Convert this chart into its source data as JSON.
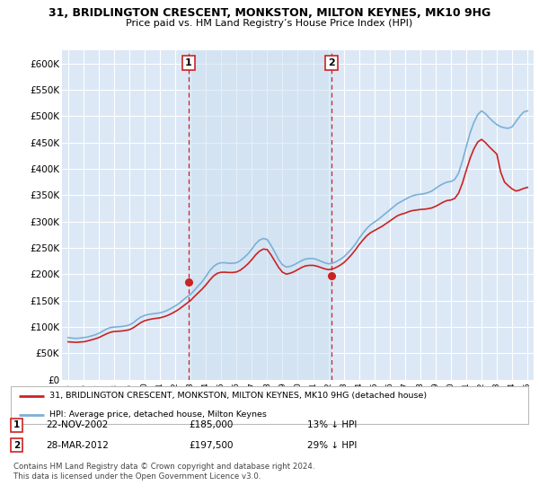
{
  "title": "31, BRIDLINGTON CRESCENT, MONKSTON, MILTON KEYNES, MK10 9HG",
  "subtitle": "Price paid vs. HM Land Registry’s House Price Index (HPI)",
  "bg_color": "#ffffff",
  "plot_bg_color": "#dce8f5",
  "hpi_color": "#7ab0d8",
  "price_color": "#cc2222",
  "sale1": {
    "date": "22-NOV-2002",
    "price": 185000,
    "label": "1",
    "pct": "13%",
    "direction": "↓"
  },
  "sale2": {
    "date": "28-MAR-2012",
    "price": 197500,
    "label": "2",
    "pct": "29%",
    "direction": "↓"
  },
  "legend_line1": "31, BRIDLINGTON CRESCENT, MONKSTON, MILTON KEYNES, MK10 9HG (detached house)",
  "legend_line2": "HPI: Average price, detached house, Milton Keynes",
  "footer1": "Contains HM Land Registry data © Crown copyright and database right 2024.",
  "footer2": "This data is licensed under the Open Government Licence v3.0.",
  "hpi_data": {
    "years": [
      1995.0,
      1995.25,
      1995.5,
      1995.75,
      1996.0,
      1996.25,
      1996.5,
      1996.75,
      1997.0,
      1997.25,
      1997.5,
      1997.75,
      1998.0,
      1998.25,
      1998.5,
      1998.75,
      1999.0,
      1999.25,
      1999.5,
      1999.75,
      2000.0,
      2000.25,
      2000.5,
      2000.75,
      2001.0,
      2001.25,
      2001.5,
      2001.75,
      2002.0,
      2002.25,
      2002.5,
      2002.75,
      2003.0,
      2003.25,
      2003.5,
      2003.75,
      2004.0,
      2004.25,
      2004.5,
      2004.75,
      2005.0,
      2005.25,
      2005.5,
      2005.75,
      2006.0,
      2006.25,
      2006.5,
      2006.75,
      2007.0,
      2007.25,
      2007.5,
      2007.75,
      2008.0,
      2008.25,
      2008.5,
      2008.75,
      2009.0,
      2009.25,
      2009.5,
      2009.75,
      2010.0,
      2010.25,
      2010.5,
      2010.75,
      2011.0,
      2011.25,
      2011.5,
      2011.75,
      2012.0,
      2012.25,
      2012.5,
      2012.75,
      2013.0,
      2013.25,
      2013.5,
      2013.75,
      2014.0,
      2014.25,
      2014.5,
      2014.75,
      2015.0,
      2015.25,
      2015.5,
      2015.75,
      2016.0,
      2016.25,
      2016.5,
      2016.75,
      2017.0,
      2017.25,
      2017.5,
      2017.75,
      2018.0,
      2018.25,
      2018.5,
      2018.75,
      2019.0,
      2019.25,
      2019.5,
      2019.75,
      2020.0,
      2020.25,
      2020.5,
      2020.75,
      2021.0,
      2021.25,
      2021.5,
      2021.75,
      2022.0,
      2022.25,
      2022.5,
      2022.75,
      2023.0,
      2023.25,
      2023.5,
      2023.75,
      2024.0,
      2024.25,
      2024.5,
      2024.75,
      2025.0
    ],
    "values": [
      80000,
      79000,
      78500,
      79000,
      80000,
      81000,
      83000,
      85000,
      88000,
      92000,
      96000,
      99000,
      100000,
      100500,
      101000,
      102000,
      104000,
      108000,
      114000,
      119000,
      122000,
      124000,
      125000,
      126000,
      127000,
      129000,
      132000,
      136000,
      140000,
      145000,
      151000,
      157000,
      162000,
      170000,
      178000,
      186000,
      196000,
      207000,
      215000,
      220000,
      222000,
      222000,
      221000,
      221000,
      222000,
      226000,
      232000,
      239000,
      248000,
      258000,
      265000,
      268000,
      266000,
      255000,
      242000,
      228000,
      218000,
      214000,
      215000,
      218000,
      222000,
      226000,
      229000,
      230000,
      230000,
      228000,
      225000,
      222000,
      220000,
      221000,
      224000,
      228000,
      233000,
      240000,
      248000,
      257000,
      268000,
      278000,
      287000,
      294000,
      299000,
      304000,
      310000,
      316000,
      322000,
      328000,
      334000,
      338000,
      342000,
      346000,
      349000,
      351000,
      352000,
      353000,
      355000,
      358000,
      363000,
      368000,
      372000,
      375000,
      376000,
      380000,
      392000,
      415000,
      442000,
      468000,
      488000,
      503000,
      510000,
      505000,
      497000,
      490000,
      484000,
      480000,
      478000,
      477000,
      480000,
      490000,
      500000,
      508000,
      510000
    ]
  },
  "price_data": {
    "years": [
      1995.0,
      1995.25,
      1995.5,
      1995.75,
      1996.0,
      1996.25,
      1996.5,
      1996.75,
      1997.0,
      1997.25,
      1997.5,
      1997.75,
      1998.0,
      1998.25,
      1998.5,
      1998.75,
      1999.0,
      1999.25,
      1999.5,
      1999.75,
      2000.0,
      2000.25,
      2000.5,
      2000.75,
      2001.0,
      2001.25,
      2001.5,
      2001.75,
      2002.0,
      2002.25,
      2002.5,
      2002.75,
      2003.0,
      2003.25,
      2003.5,
      2003.75,
      2004.0,
      2004.25,
      2004.5,
      2004.75,
      2005.0,
      2005.25,
      2005.5,
      2005.75,
      2006.0,
      2006.25,
      2006.5,
      2006.75,
      2007.0,
      2007.25,
      2007.5,
      2007.75,
      2008.0,
      2008.25,
      2008.5,
      2008.75,
      2009.0,
      2009.25,
      2009.5,
      2009.75,
      2010.0,
      2010.25,
      2010.5,
      2010.75,
      2011.0,
      2011.25,
      2011.5,
      2011.75,
      2012.0,
      2012.25,
      2012.5,
      2012.75,
      2013.0,
      2013.25,
      2013.5,
      2013.75,
      2014.0,
      2014.25,
      2014.5,
      2014.75,
      2015.0,
      2015.25,
      2015.5,
      2015.75,
      2016.0,
      2016.25,
      2016.5,
      2016.75,
      2017.0,
      2017.25,
      2017.5,
      2017.75,
      2018.0,
      2018.25,
      2018.5,
      2018.75,
      2019.0,
      2019.25,
      2019.5,
      2019.75,
      2020.0,
      2020.25,
      2020.5,
      2020.75,
      2021.0,
      2021.25,
      2021.5,
      2021.75,
      2022.0,
      2022.25,
      2022.5,
      2022.75,
      2023.0,
      2023.25,
      2023.5,
      2023.75,
      2024.0,
      2024.25,
      2024.5,
      2024.75,
      2025.0
    ],
    "values": [
      72000,
      71500,
      71000,
      71500,
      72000,
      73500,
      75500,
      77500,
      80000,
      83500,
      87000,
      90000,
      91500,
      92000,
      92500,
      93500,
      95000,
      98500,
      103500,
      108500,
      112000,
      114000,
      115500,
      116500,
      117500,
      119500,
      122000,
      125500,
      129500,
      134000,
      139500,
      145000,
      150500,
      158000,
      165000,
      172000,
      180000,
      189000,
      197000,
      202000,
      204000,
      204000,
      203500,
      203500,
      204500,
      208000,
      213500,
      220000,
      228000,
      237000,
      244000,
      248000,
      247000,
      237000,
      225000,
      213000,
      204000,
      200500,
      202000,
      205000,
      209000,
      213000,
      216000,
      217000,
      217000,
      215500,
      213000,
      210500,
      209000,
      210000,
      213000,
      217000,
      222000,
      229000,
      237000,
      246000,
      256000,
      265000,
      273000,
      279000,
      283000,
      287000,
      291000,
      296000,
      301000,
      306000,
      311000,
      314000,
      316000,
      319000,
      321000,
      322000,
      323000,
      323500,
      324500,
      326000,
      329000,
      333000,
      337000,
      340000,
      341000,
      344000,
      354000,
      373000,
      397000,
      420000,
      438000,
      451000,
      456000,
      450000,
      442000,
      435000,
      428000,
      394000,
      375000,
      368000,
      362000,
      358000,
      360000,
      363000,
      365000
    ]
  },
  "yticks": [
    0,
    50000,
    100000,
    150000,
    200000,
    250000,
    300000,
    350000,
    400000,
    450000,
    500000,
    550000,
    600000
  ],
  "ylabels": [
    "£0",
    "£50K",
    "£100K",
    "£150K",
    "£200K",
    "£250K",
    "£300K",
    "£350K",
    "£400K",
    "£450K",
    "£500K",
    "£550K",
    "£600K"
  ],
  "xlim": [
    1994.6,
    2025.4
  ],
  "ylim": [
    0,
    625000
  ]
}
